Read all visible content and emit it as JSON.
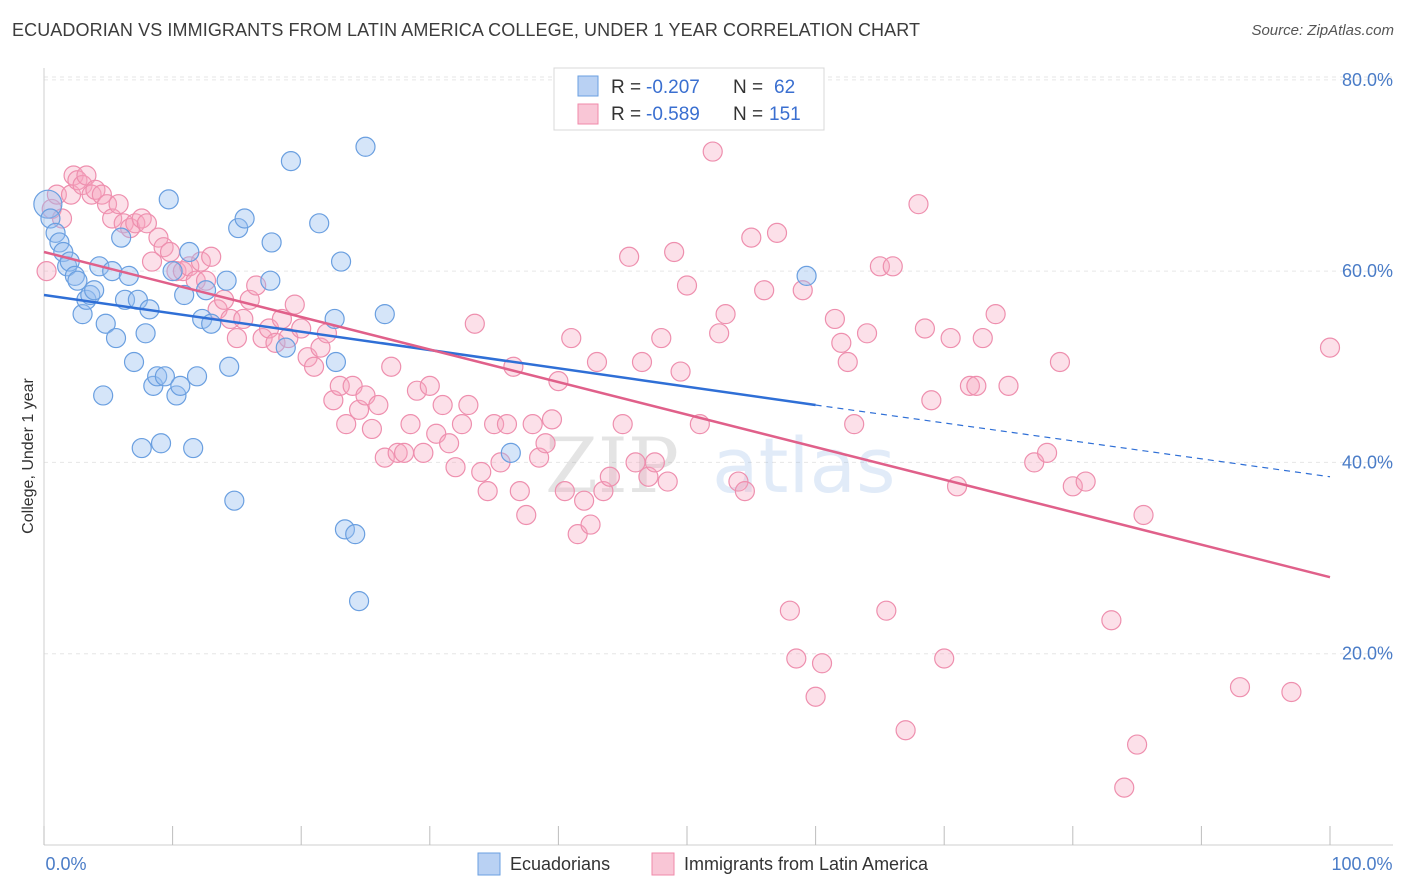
{
  "title": "ECUADORIAN VS IMMIGRANTS FROM LATIN AMERICA COLLEGE, UNDER 1 YEAR CORRELATION CHART",
  "source": "Source: ZipAtlas.com",
  "watermark": {
    "zip": "ZIP",
    "atlas": "atlas"
  },
  "colors": {
    "blue": "#6a9fe0",
    "blue_line": "#2f6fd6",
    "pink": "#f08aaa",
    "pink_line": "#e0608a",
    "axis_text": "#4a7cc7"
  },
  "legend": {
    "rows": [
      {
        "r_label": "R =",
        "r_value": "-0.207",
        "n_label": "N =",
        "n_value": "62"
      },
      {
        "r_label": "R =",
        "r_value": "-0.589",
        "n_label": "N =",
        "n_value": "151"
      }
    ]
  },
  "bottom_legend": [
    "Ecuadorians",
    "Immigrants from Latin America"
  ],
  "chart_data": {
    "type": "scatter",
    "xlabel": "",
    "ylabel": "College, Under 1 year",
    "xlim": [
      0,
      100
    ],
    "ylim": [
      0,
      85
    ],
    "x_tick_labels": [
      "0.0%",
      "100.0%"
    ],
    "y_ticks": [
      20,
      40,
      60,
      80
    ],
    "y_tick_labels": [
      "20.0%",
      "40.0%",
      "60.0%",
      "80.0%"
    ],
    "grid": true,
    "legend_position": "top-center",
    "series": [
      {
        "name": "Ecuadorians",
        "color": "#6a9fe0",
        "points": [
          [
            0.3,
            67
          ],
          [
            0.5,
            65.5
          ],
          [
            0.9,
            64
          ],
          [
            1.2,
            63
          ],
          [
            1.5,
            62
          ],
          [
            1.8,
            60.5
          ],
          [
            2,
            61
          ],
          [
            2.4,
            59.5
          ],
          [
            2.6,
            59
          ],
          [
            3,
            55.5
          ],
          [
            3.3,
            57
          ],
          [
            3.6,
            57.5
          ],
          [
            3.9,
            58
          ],
          [
            4.3,
            60.5
          ],
          [
            4.6,
            47
          ],
          [
            4.8,
            54.5
          ],
          [
            5.3,
            60
          ],
          [
            5.6,
            53
          ],
          [
            6,
            63.5
          ],
          [
            6.3,
            57
          ],
          [
            6.6,
            59.5
          ],
          [
            7,
            50.5
          ],
          [
            7.3,
            57
          ],
          [
            7.6,
            41.5
          ],
          [
            7.9,
            53.5
          ],
          [
            8.2,
            56
          ],
          [
            8.5,
            48
          ],
          [
            8.8,
            49
          ],
          [
            9.1,
            42
          ],
          [
            9.4,
            49
          ],
          [
            9.7,
            67.5
          ],
          [
            10,
            60
          ],
          [
            10.3,
            47
          ],
          [
            10.6,
            48
          ],
          [
            10.9,
            57.5
          ],
          [
            11.3,
            62
          ],
          [
            11.6,
            41.5
          ],
          [
            11.9,
            49
          ],
          [
            12.3,
            55
          ],
          [
            12.6,
            58
          ],
          [
            13,
            54.5
          ],
          [
            14.2,
            59
          ],
          [
            14.4,
            50
          ],
          [
            14.8,
            36
          ],
          [
            15.1,
            64.5
          ],
          [
            15.6,
            65.5
          ],
          [
            17.6,
            59
          ],
          [
            17.7,
            63
          ],
          [
            18.8,
            52
          ],
          [
            19.2,
            71.5
          ],
          [
            21.4,
            65
          ],
          [
            22.6,
            55
          ],
          [
            22.7,
            50.5
          ],
          [
            23.1,
            61
          ],
          [
            23.4,
            33
          ],
          [
            24.2,
            32.5
          ],
          [
            24.5,
            25.5
          ],
          [
            25,
            73
          ],
          [
            26.5,
            55.5
          ],
          [
            36.3,
            41
          ],
          [
            59.3,
            59.5
          ]
        ]
      },
      {
        "name": "Immigrants from Latin America",
        "color": "#f08aaa",
        "points": [
          [
            0.2,
            60
          ],
          [
            0.6,
            66.5
          ],
          [
            1,
            68
          ],
          [
            1.4,
            65.5
          ],
          [
            2.1,
            68
          ],
          [
            2.3,
            70
          ],
          [
            2.6,
            69.5
          ],
          [
            3,
            69
          ],
          [
            3.3,
            70
          ],
          [
            3.7,
            68
          ],
          [
            4,
            68.5
          ],
          [
            4.5,
            68
          ],
          [
            4.9,
            67
          ],
          [
            5.3,
            65.5
          ],
          [
            5.8,
            67
          ],
          [
            6.2,
            65
          ],
          [
            6.7,
            64.5
          ],
          [
            7.1,
            65
          ],
          [
            7.6,
            65.5
          ],
          [
            8,
            65
          ],
          [
            8.4,
            61
          ],
          [
            8.9,
            63.5
          ],
          [
            9.3,
            62.5
          ],
          [
            9.8,
            62
          ],
          [
            10.3,
            60
          ],
          [
            10.8,
            60
          ],
          [
            11.3,
            60.5
          ],
          [
            11.8,
            59
          ],
          [
            12.2,
            61
          ],
          [
            12.6,
            59
          ],
          [
            13,
            61.5
          ],
          [
            13.5,
            56
          ],
          [
            14,
            57
          ],
          [
            14.5,
            55
          ],
          [
            15,
            53
          ],
          [
            15.5,
            55
          ],
          [
            16,
            57
          ],
          [
            16.5,
            58.5
          ],
          [
            17,
            53
          ],
          [
            17.5,
            54
          ],
          [
            18,
            52.5
          ],
          [
            18.5,
            55
          ],
          [
            19,
            53
          ],
          [
            19.5,
            56.5
          ],
          [
            20,
            54
          ],
          [
            20.5,
            51
          ],
          [
            21,
            50
          ],
          [
            21.5,
            52
          ],
          [
            22,
            53.5
          ],
          [
            22.5,
            46.5
          ],
          [
            23,
            48
          ],
          [
            23.5,
            44
          ],
          [
            24,
            48
          ],
          [
            24.5,
            45.5
          ],
          [
            25,
            47
          ],
          [
            25.5,
            43.5
          ],
          [
            26,
            46
          ],
          [
            26.5,
            40.5
          ],
          [
            27,
            50
          ],
          [
            27.5,
            41
          ],
          [
            28,
            41
          ],
          [
            28.5,
            44
          ],
          [
            29,
            47.5
          ],
          [
            29.5,
            41
          ],
          [
            30,
            48
          ],
          [
            30.5,
            43
          ],
          [
            31,
            46
          ],
          [
            31.5,
            42
          ],
          [
            32,
            39.5
          ],
          [
            32.5,
            44
          ],
          [
            33,
            46
          ],
          [
            33.5,
            54.5
          ],
          [
            34,
            39
          ],
          [
            34.5,
            37
          ],
          [
            35,
            44
          ],
          [
            35.5,
            40
          ],
          [
            36,
            44
          ],
          [
            36.5,
            50
          ],
          [
            37,
            37
          ],
          [
            37.5,
            34.5
          ],
          [
            38,
            44
          ],
          [
            38.5,
            40.5
          ],
          [
            39,
            42
          ],
          [
            39.5,
            44.5
          ],
          [
            40,
            48.5
          ],
          [
            40.5,
            37
          ],
          [
            41,
            53
          ],
          [
            41.5,
            32.5
          ],
          [
            42,
            36
          ],
          [
            42.5,
            33.5
          ],
          [
            43,
            50.5
          ],
          [
            43.5,
            37
          ],
          [
            44,
            38.5
          ],
          [
            45,
            44
          ],
          [
            45.5,
            61.5
          ],
          [
            46,
            40
          ],
          [
            46.5,
            50.5
          ],
          [
            47,
            38.5
          ],
          [
            47.5,
            40
          ],
          [
            48,
            53
          ],
          [
            48.5,
            38
          ],
          [
            49,
            62
          ],
          [
            49.5,
            49.5
          ],
          [
            50,
            58.5
          ],
          [
            51,
            44
          ],
          [
            52,
            72.5
          ],
          [
            52.5,
            53.5
          ],
          [
            53,
            55.5
          ],
          [
            54,
            38
          ],
          [
            54.5,
            37
          ],
          [
            55,
            63.5
          ],
          [
            56,
            58
          ],
          [
            57,
            64
          ],
          [
            58,
            24.5
          ],
          [
            58.5,
            19.5
          ],
          [
            59,
            58
          ],
          [
            60,
            15.5
          ],
          [
            60.5,
            19
          ],
          [
            61.5,
            55
          ],
          [
            62,
            52.5
          ],
          [
            62.5,
            50.5
          ],
          [
            63,
            44
          ],
          [
            64,
            53.5
          ],
          [
            65,
            60.5
          ],
          [
            65.5,
            24.5
          ],
          [
            66,
            60.5
          ],
          [
            67,
            12
          ],
          [
            68,
            67
          ],
          [
            68.5,
            54
          ],
          [
            69,
            46.5
          ],
          [
            70,
            19.5
          ],
          [
            70.5,
            53
          ],
          [
            71,
            37.5
          ],
          [
            72,
            48
          ],
          [
            72.5,
            48
          ],
          [
            73,
            53
          ],
          [
            74,
            55.5
          ],
          [
            75,
            48
          ],
          [
            77,
            40
          ],
          [
            78,
            41
          ],
          [
            79,
            50.5
          ],
          [
            80,
            37.5
          ],
          [
            81,
            38
          ],
          [
            83,
            23.5
          ],
          [
            84,
            6
          ],
          [
            85,
            10.5
          ],
          [
            85.5,
            34.5
          ],
          [
            93,
            16.5
          ],
          [
            97,
            16
          ],
          [
            100,
            52
          ]
        ]
      }
    ],
    "trend_lines": [
      {
        "series": "Ecuadorians",
        "solid_from": [
          0,
          57.5
        ],
        "solid_to": [
          60,
          46
        ],
        "dashed_to": [
          100,
          38.5
        ]
      },
      {
        "series": "Immigrants from Latin America",
        "from": [
          0,
          62
        ],
        "to": [
          100,
          28
        ]
      }
    ]
  }
}
